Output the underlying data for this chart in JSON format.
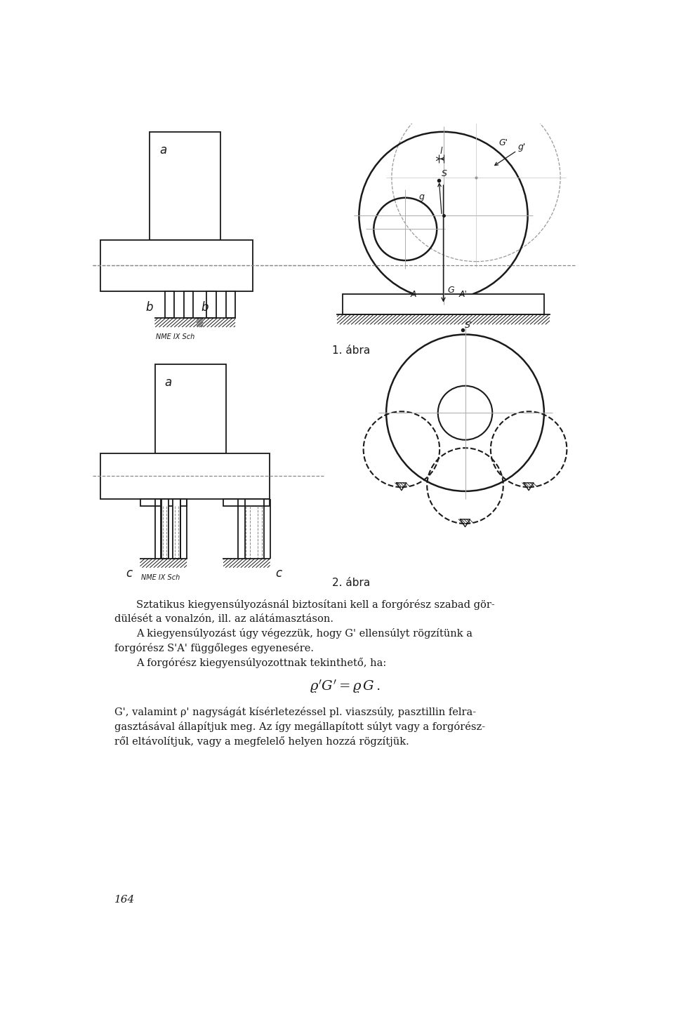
{
  "bg_color": "#ffffff",
  "line_color": "#1a1a1a",
  "fig1_caption": "1. ábra",
  "fig2_caption": "2. ábra",
  "label_a1": "a",
  "label_b1_left": "b",
  "label_b1_right": "b",
  "label_a2": "a",
  "label_c2_left": "c",
  "label_c2_right": "c",
  "nme_label1": "NME IX Sch",
  "nme_label2": "NME IX Sch",
  "label_G_prime": "G'",
  "label_g_prime": "g'",
  "label_l": "l",
  "label_S": "S",
  "label_g": "g",
  "label_A": "A",
  "label_G": "G",
  "label_A_prime": "A'",
  "label_S_prime": "S'",
  "page_number": "164"
}
